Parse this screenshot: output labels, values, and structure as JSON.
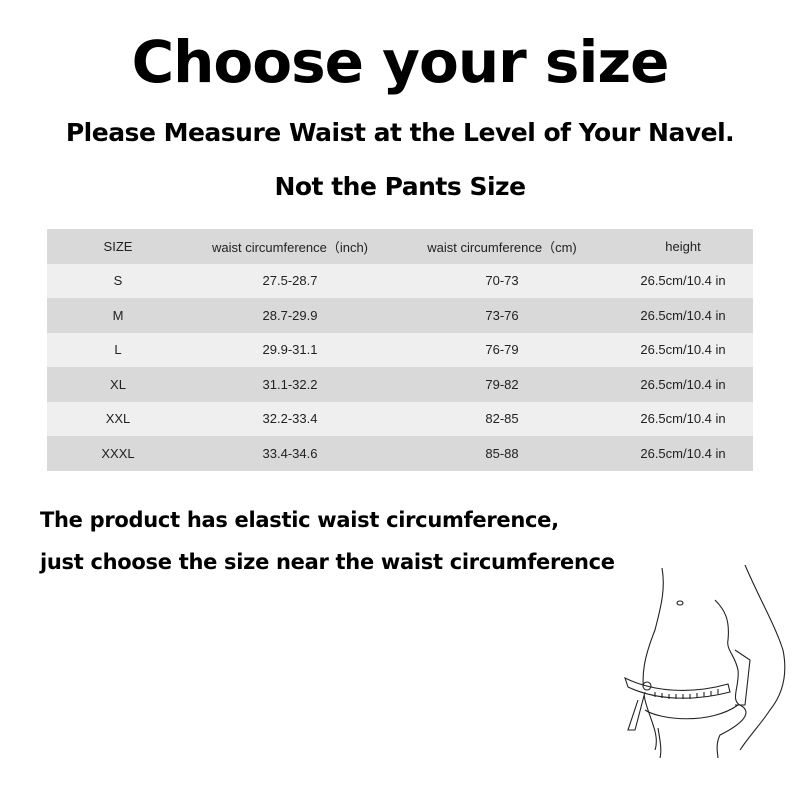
{
  "title": "Choose your size",
  "subtitle_1": "Please Measure Waist at the Level of Your Navel.",
  "subtitle_2": "Not the Pants Size",
  "table": {
    "headers": [
      "SIZE",
      "waist circumference（inch)",
      "waist circumference（cm)",
      "height"
    ],
    "rows": [
      [
        "S",
        "27.5-28.7",
        "70-73",
        "26.5cm/10.4 in"
      ],
      [
        "M",
        "28.7-29.9",
        "73-76",
        "26.5cm/10.4 in"
      ],
      [
        "L",
        "29.9-31.1",
        "76-79",
        "26.5cm/10.4 in"
      ],
      [
        "XL",
        "31.1-32.2",
        "79-82",
        "26.5cm/10.4 in"
      ],
      [
        "XXL",
        "32.2-33.4",
        "82-85",
        "26.5cm/10.4 in"
      ],
      [
        "XXXL",
        "33.4-34.6",
        "85-88",
        "26.5cm/10.4 in"
      ]
    ]
  },
  "note_1": "The product has elastic waist circumference,",
  "note_2": "just choose the size near the waist circumference",
  "illustration": "waist-measuring-figure"
}
